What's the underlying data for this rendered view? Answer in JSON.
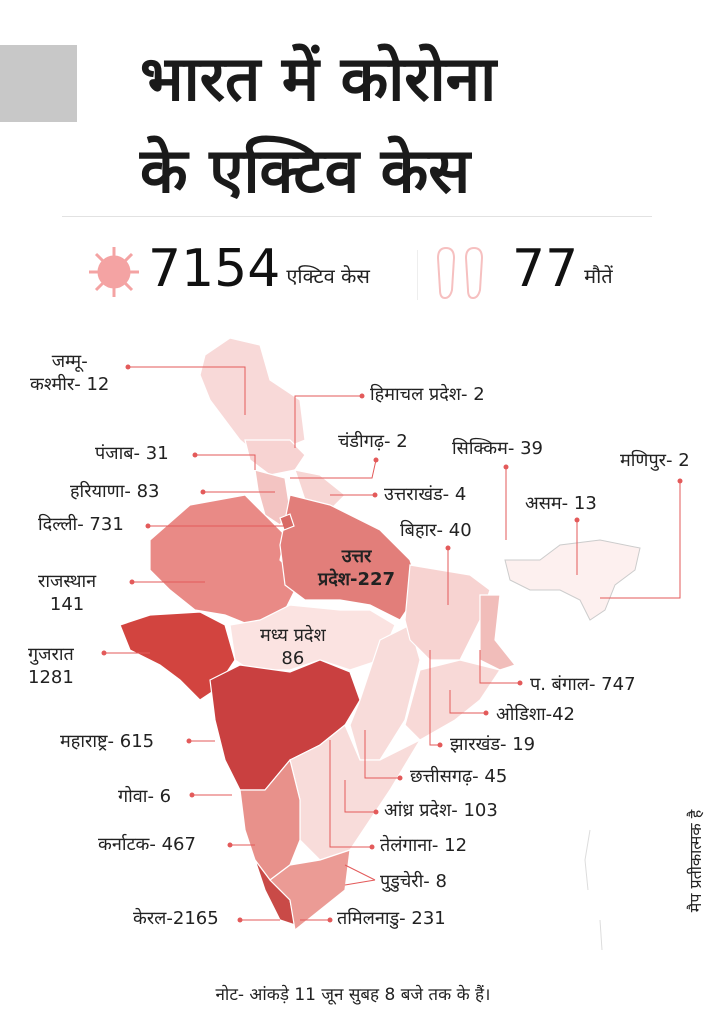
{
  "title": {
    "line1": "भारत में कोरोना",
    "line2": "के एक्टिव केस"
  },
  "summary": {
    "active_value": "7154",
    "active_label": "एक्टिव केस",
    "active_icon": "virus-icon",
    "deaths_value": "77",
    "deaths_label": "मौतें",
    "deaths_icon": "footprints-icon"
  },
  "colors": {
    "accent": "#e35a5a",
    "highest": "#c94040",
    "high": "#d2443f",
    "medium": "#e98a86",
    "low": "#f7d6d4",
    "lowest": "#fdf0ef"
  },
  "states": {
    "jk": {
      "name": "जम्मू-",
      "name2": "कश्मीर- 12",
      "cases": 12
    },
    "hp": {
      "label": "हिमाचल प्रदेश- 2",
      "cases": 2
    },
    "chd": {
      "label": "चंडीगढ़- 2",
      "cases": 2
    },
    "sk": {
      "label": "सिक्किम- 39",
      "cases": 39
    },
    "mn": {
      "label": "मणिपुर- 2",
      "cases": 2
    },
    "pb": {
      "label": "पंजाब- 31",
      "cases": 31
    },
    "hr": {
      "label": "हरियाणा- 83",
      "cases": 83
    },
    "uk": {
      "label": "उत्तराखंड- 4",
      "cases": 4
    },
    "as": {
      "label": "असम- 13",
      "cases": 13
    },
    "dl": {
      "label": "दिल्ली- 731",
      "cases": 731
    },
    "br": {
      "label": "बिहार- 40",
      "cases": 40
    },
    "up": {
      "name": "उत्तर",
      "name2": "प्रदेश-227",
      "cases": 227
    },
    "rj": {
      "name": "राजस्थान",
      "name2": "141",
      "cases": 141
    },
    "gj": {
      "name": "गुजरात",
      "name2": "1281",
      "cases": 1281
    },
    "mp": {
      "name": "मध्य प्रदेश",
      "name2": "86",
      "cases": 86
    },
    "wb": {
      "label": "प. बंगाल- 747",
      "cases": 747
    },
    "od": {
      "label": "ओडिशा-42",
      "cases": 42
    },
    "jh": {
      "label": "झारखंड- 19",
      "cases": 19
    },
    "mh": {
      "label": "महाराष्ट्र- 615",
      "cases": 615
    },
    "cg": {
      "label": "छत्तीसगढ़- 45",
      "cases": 45
    },
    "ga": {
      "label": "गोवा- 6",
      "cases": 6
    },
    "ap": {
      "label": "आंध्र प्रदेश- 103",
      "cases": 103
    },
    "ka": {
      "label": "कर्नाटक- 467",
      "cases": 467
    },
    "tg": {
      "label": "तेलंगाना- 12",
      "cases": 12
    },
    "py": {
      "label": "पुडुचेरी- 8",
      "cases": 8
    },
    "kl": {
      "label": "केरल-2165",
      "cases": 2165
    },
    "tn": {
      "label": "तमिलनाडु- 231",
      "cases": 231
    }
  },
  "disclaimer": "मैप प्रतीकात्मक है",
  "note": "नोट- आंकड़े 11 जून सुबह 8 बजे तक के हैं।"
}
